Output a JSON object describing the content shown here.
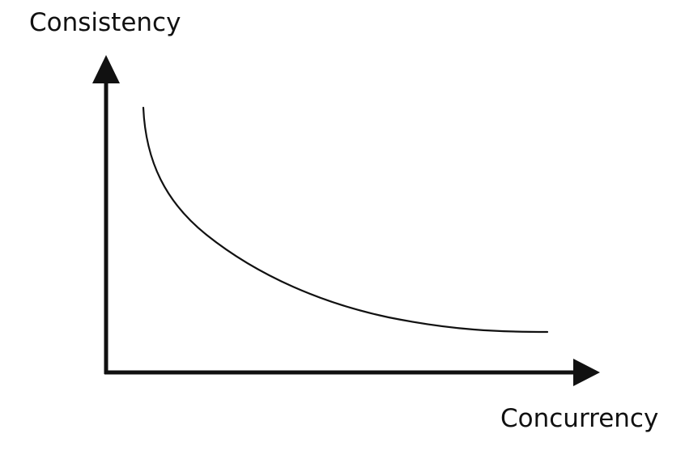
{
  "diagram": {
    "y_axis_label": "Consistency",
    "x_axis_label": "Concurrency",
    "curve": {
      "shape": "decreasing convex curve",
      "description_points_normalized": []
    },
    "colors": {
      "ink": "#111111",
      "background": "#ffffff"
    }
  }
}
